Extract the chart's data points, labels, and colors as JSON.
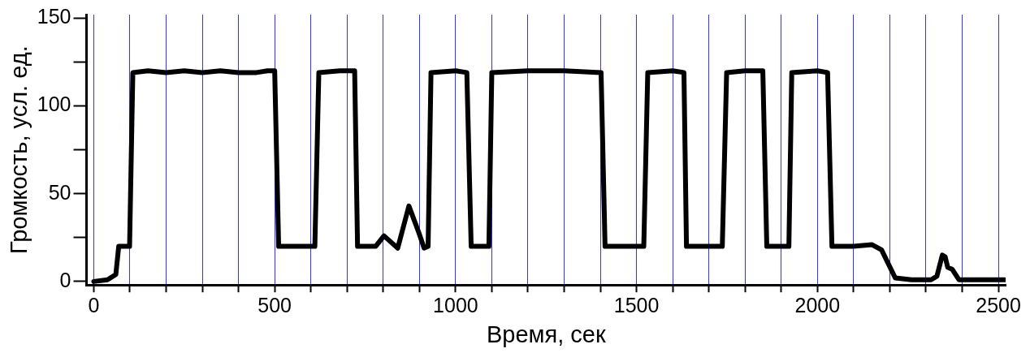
{
  "chart_data": {
    "type": "line",
    "xlabel": "Время, сек",
    "ylabel": "Громкость, усл. ед.",
    "xlim": [
      -20,
      2520
    ],
    "ylim": [
      -2,
      152
    ],
    "xticks": [
      0,
      {
        "value": 100,
        "label": null
      },
      {
        "value": 200,
        "label": null
      },
      {
        "value": 300,
        "label": null
      },
      {
        "value": 400,
        "label": null
      },
      500,
      {
        "value": 600,
        "label": null
      },
      {
        "value": 700,
        "label": null
      },
      {
        "value": 800,
        "label": null
      },
      {
        "value": 900,
        "label": null
      },
      1000,
      {
        "value": 1100,
        "label": null
      },
      {
        "value": 1200,
        "label": null
      },
      {
        "value": 1300,
        "label": null
      },
      {
        "value": 1400,
        "label": null
      },
      1500,
      {
        "value": 1600,
        "label": null
      },
      {
        "value": 1700,
        "label": null
      },
      {
        "value": 1800,
        "label": null
      },
      {
        "value": 1900,
        "label": null
      },
      2000,
      {
        "value": 2100,
        "label": null
      },
      {
        "value": 2200,
        "label": null
      },
      {
        "value": 2300,
        "label": null
      },
      {
        "value": 2400,
        "label": null
      },
      2500
    ],
    "yticks": [
      0,
      {
        "value": 25,
        "label": null
      },
      50,
      {
        "value": 75,
        "label": null
      },
      100,
      {
        "value": 125,
        "label": null
      },
      150
    ],
    "grid": "x",
    "legend": false,
    "marker": "none",
    "line_style": "solid",
    "series": [
      {
        "color": "#000000",
        "x": [
          0,
          38,
          61,
          69,
          99,
          108,
          150,
          200,
          250,
          300,
          350,
          400,
          450,
          480,
          500,
          511,
          550,
          600,
          611,
          622,
          680,
          721,
          729,
          779,
          802,
          840,
          871,
          898,
          913,
          924,
          932,
          1000,
          1031,
          1043,
          1092,
          1100,
          1200,
          1300,
          1402,
          1413,
          1470,
          1520,
          1531,
          1600,
          1631,
          1638,
          1700,
          1737,
          1749,
          1800,
          1849,
          1860,
          1921,
          1929,
          2000,
          2028,
          2040,
          2100,
          2150,
          2177,
          2215,
          2260,
          2314,
          2330,
          2345,
          2353,
          2360,
          2372,
          2391,
          2450,
          2517
        ],
        "values": [
          0,
          1,
          4,
          20,
          20,
          119,
          120,
          119,
          120,
          119,
          120,
          119,
          119,
          120,
          120,
          20,
          20,
          20,
          20,
          119,
          120,
          120,
          20,
          20,
          26,
          19,
          43,
          28,
          19,
          20,
          119,
          120,
          119,
          20,
          20,
          119,
          120,
          120,
          119,
          20,
          20,
          20,
          119,
          120,
          119,
          20,
          20,
          20,
          119,
          120,
          120,
          20,
          20,
          119,
          120,
          119,
          20,
          20,
          21,
          18,
          2,
          1,
          1,
          3,
          15,
          14,
          8,
          7,
          1,
          1,
          1
        ]
      }
    ]
  }
}
